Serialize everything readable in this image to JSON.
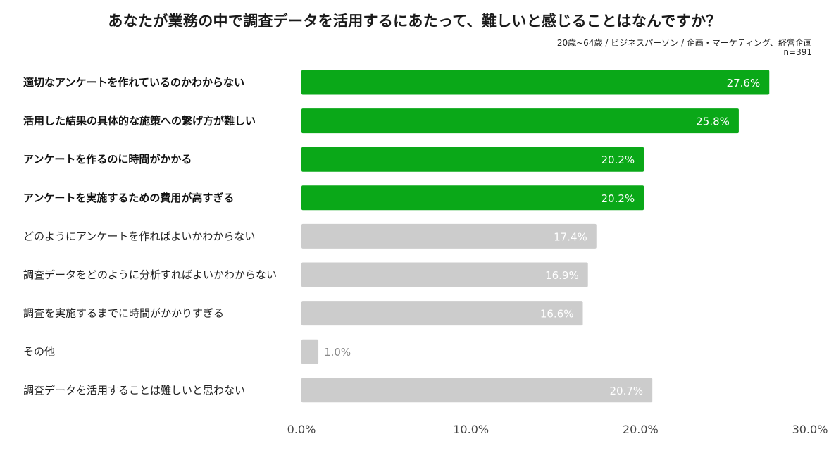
{
  "chart_data": {
    "type": "bar",
    "orientation": "horizontal",
    "title": "あなたが業務の中で調査データを活用するにあたって、難しいと感じることはなんですか？",
    "subtitle": "20歳~64歳 / ビジネスパーソン / 企画・マーケティング、経営企画",
    "sample": "n=391",
    "categories": [
      "適切なアンケートを作れているのかわからない",
      "活用した結果の具体的な施策への繋げ方が難しい",
      "アンケートを作るのに時間がかかる",
      "アンケートを実施するための費用が高すぎる",
      "どのようにアンケートを作ればよいかわからない",
      "調査データをどのように分析すればよいかわからない",
      "調査を実施するまでに時間がかかりすぎる",
      "その他",
      "調査データを活用することは難しいと思わない"
    ],
    "values": [
      27.6,
      25.8,
      20.2,
      20.2,
      17.4,
      16.9,
      16.6,
      1.0,
      20.7
    ],
    "value_labels": [
      "27.6%",
      "25.8%",
      "20.2%",
      "20.2%",
      "17.4%",
      "16.9%",
      "16.6%",
      "1.0%",
      "20.7%"
    ],
    "highlighted": [
      true,
      true,
      true,
      true,
      false,
      false,
      false,
      false,
      false
    ],
    "xlim": [
      0,
      30
    ],
    "xticks": [
      0,
      10,
      20,
      30
    ],
    "xtick_labels": [
      "0.0%",
      "10.0%",
      "20.0%",
      "30.0%"
    ],
    "colors": {
      "highlight": "#0aa818",
      "normal": "#cccccc",
      "label_on_bar": "#ffffff",
      "label_outside": "#888888"
    }
  }
}
